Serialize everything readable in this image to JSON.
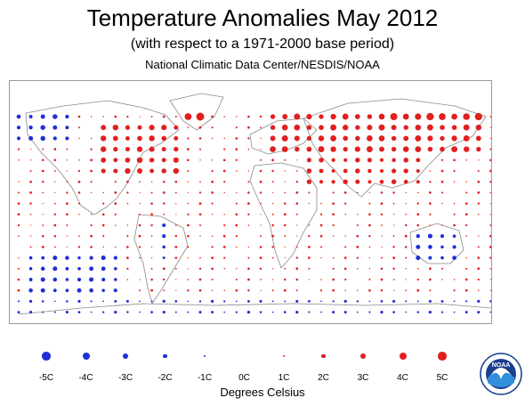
{
  "header": {
    "title": "Temperature Anomalies May 2012",
    "subtitle": "(with respect to a 1971-2000 base period)",
    "source": "National Climatic Data Center/NESDIS/NOAA"
  },
  "legend": {
    "items": [
      {
        "label": "-5C",
        "value": -5,
        "color": "#1f2fd6"
      },
      {
        "label": "-4C",
        "value": -4,
        "color": "#1f2fd6"
      },
      {
        "label": "-3C",
        "value": -3,
        "color": "#1f2fd6"
      },
      {
        "label": "-2C",
        "value": -2,
        "color": "#1f2fd6"
      },
      {
        "label": "-1C",
        "value": -1,
        "color": "#1f2fd6"
      },
      {
        "label": "0C",
        "value": 0,
        "color": "#888888"
      },
      {
        "label": "1C",
        "value": 1,
        "color": "#e21f1f"
      },
      {
        "label": "2C",
        "value": 2,
        "color": "#e21f1f"
      },
      {
        "label": "3C",
        "value": 3,
        "color": "#e21f1f"
      },
      {
        "label": "4C",
        "value": 4,
        "color": "#e21f1f"
      },
      {
        "label": "5C",
        "value": 5,
        "color": "#e21f1f"
      }
    ],
    "units": "Degrees Celsius"
  },
  "logo": {
    "text": "NOAA",
    "icon": "noaa-logo-icon"
  },
  "colors": {
    "warm": "#e21f1f",
    "cold": "#1f2fd6",
    "coast": "#8a8a8a",
    "frame": "#9a9a9a"
  }
}
